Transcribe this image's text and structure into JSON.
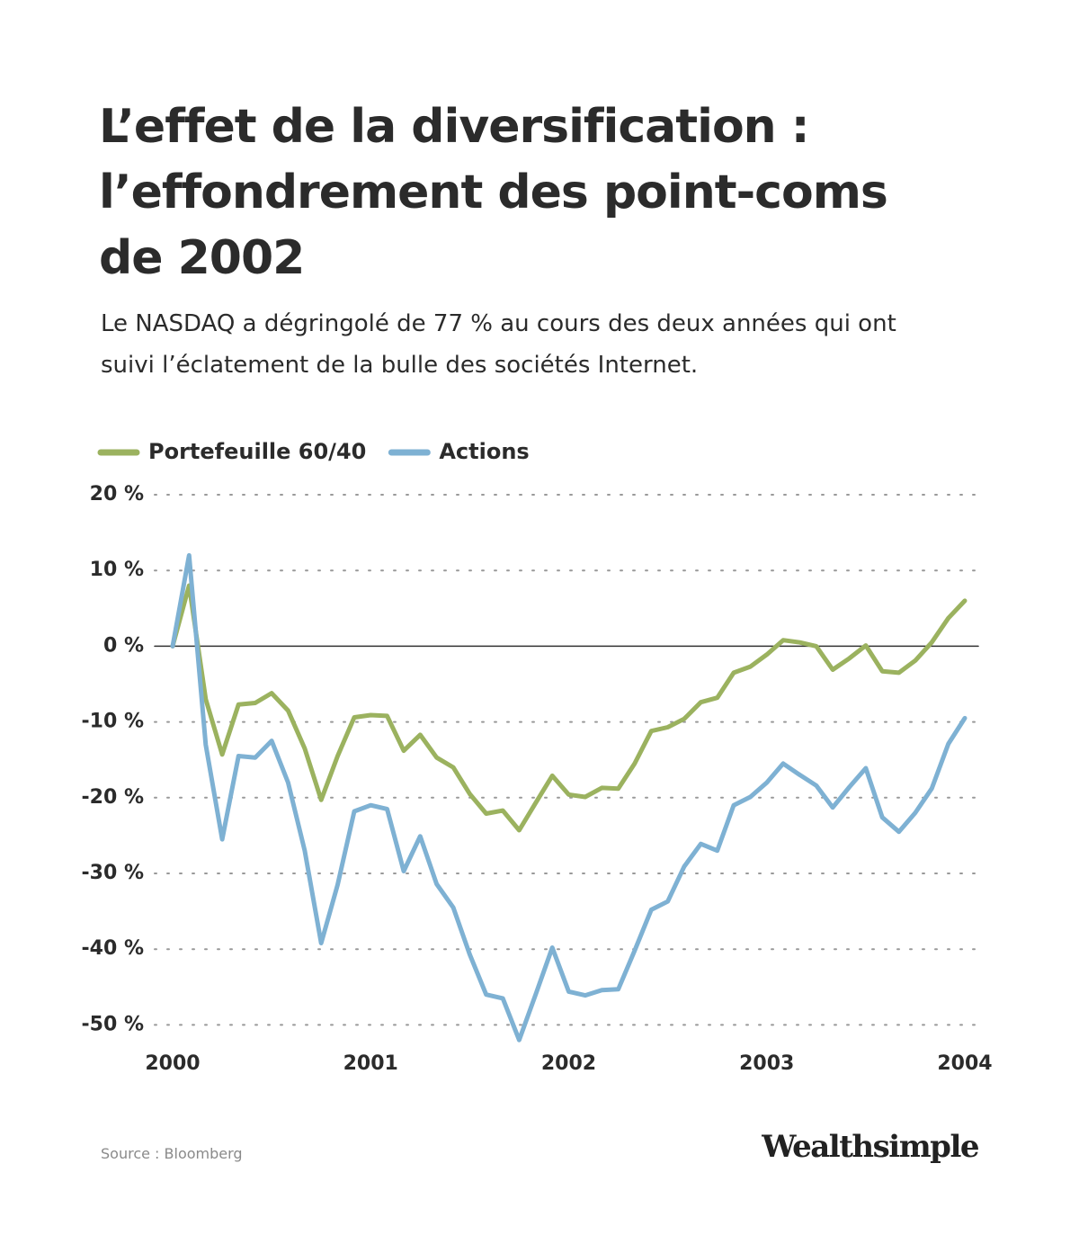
{
  "chart_data": {
    "type": "line",
    "title": [
      "L’effet de la diversification :",
      "l’effondrement des point-coms",
      "de 2002"
    ],
    "subtitle": [
      "Le NASDAQ a dégringolé de 77 % au cours des deux années qui ont",
      "suivi l’éclatement de la bulle des sociétés Internet."
    ],
    "source": "Source : Bloomberg",
    "brand": "Wealthsimple",
    "x": [
      2000,
      2000.083,
      2000.167,
      2000.25,
      2000.333,
      2000.417,
      2000.5,
      2000.583,
      2000.667,
      2000.75,
      2000.833,
      2000.917,
      2001,
      2001.083,
      2001.167,
      2001.25,
      2001.333,
      2001.417,
      2001.5,
      2001.583,
      2001.667,
      2001.75,
      2001.833,
      2001.917,
      2002,
      2002.083,
      2002.167,
      2002.25,
      2002.333,
      2002.417,
      2002.5,
      2002.583,
      2002.667,
      2002.75,
      2002.833,
      2002.917,
      2003,
      2003.083,
      2003.167,
      2003.25,
      2003.333,
      2003.417,
      2003.5,
      2003.583,
      2003.667,
      2003.75,
      2003.833,
      2003.917,
      2004
    ],
    "series": [
      {
        "name": "Portefeuille 60/40",
        "color": "#9bb25f",
        "values": [
          0,
          8,
          -7,
          -14.3,
          -7.7,
          -7.5,
          -6.2,
          -8.5,
          -13.5,
          -20.3,
          -14.5,
          -9.4,
          -9.1,
          -9.2,
          -13.8,
          -11.7,
          -14.7,
          -16,
          -19.5,
          -22.1,
          -21.7,
          -24.3,
          -20.7,
          -17.1,
          -19.6,
          -19.9,
          -18.7,
          -18.8,
          -15.5,
          -11.2,
          -10.7,
          -9.6,
          -7.4,
          -6.8,
          -3.5,
          -2.7,
          -1.1,
          0.8,
          0.5,
          0,
          -3.1,
          -1.6,
          0.1,
          -3.3,
          -3.5,
          -1.9,
          0.5,
          3.7,
          6
        ]
      },
      {
        "name": "Actions",
        "color": "#7eb1d3",
        "values": [
          0,
          12,
          -13,
          -25.5,
          -14.5,
          -14.7,
          -12.5,
          -18,
          -27,
          -39.2,
          -31.5,
          -21.8,
          -21,
          -21.5,
          -29.7,
          -25.1,
          -31.4,
          -34.5,
          -40.7,
          -46,
          -46.5,
          -52,
          -46,
          -39.8,
          -45.6,
          -46.1,
          -45.4,
          -45.3,
          -40.2,
          -34.8,
          -33.7,
          -29.1,
          -26.1,
          -27,
          -21,
          -19.9,
          -18,
          -15.5,
          -17,
          -18.4,
          -21.3,
          -18.6,
          -16.1,
          -22.6,
          -24.5,
          -22,
          -18.8,
          -12.9,
          -9.5
        ]
      }
    ],
    "xlim": [
      2000,
      2004
    ],
    "xticks": [
      2000,
      2001,
      2002,
      2003,
      2004
    ],
    "ylim": [
      -54,
      20
    ],
    "yticks": [
      {
        "value": 20,
        "label": "20 %"
      },
      {
        "value": 10,
        "label": "10 %"
      },
      {
        "value": 0,
        "label": "0 %"
      },
      {
        "value": -10,
        "label": "-10 %"
      },
      {
        "value": -20,
        "label": "-20 %"
      },
      {
        "value": -30,
        "label": "-30 %"
      },
      {
        "value": -40,
        "label": "-40 %"
      },
      {
        "value": -50,
        "label": "-50 %"
      }
    ],
    "grid": true
  }
}
